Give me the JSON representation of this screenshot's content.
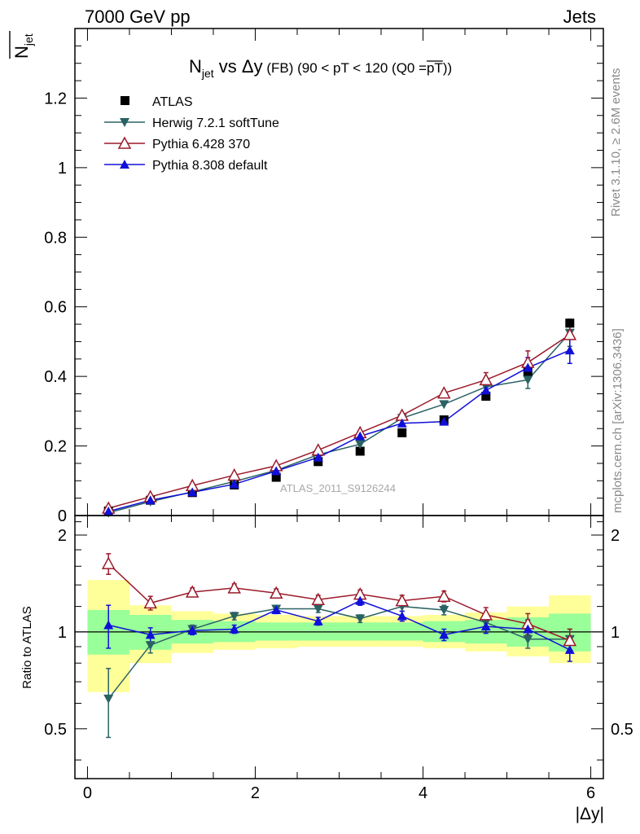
{
  "header": {
    "left": "7000 GeV pp",
    "right": "Jets"
  },
  "side_labels": {
    "top": "Rivet 3.1.10, ≥ 2.6M events",
    "bottom": "mcplots.cern.ch [arXiv:1306.3436]"
  },
  "watermark": "ATLAS_2011_S9126244",
  "chart_data": {
    "type": "scatter",
    "title_parts": {
      "n": "N",
      "sub": "jet",
      "mid": " vs Δy",
      "paren": " (FB) (90 < pT < 120 (Q0 =",
      "over": "pT",
      "close": "))"
    },
    "ylabel_main": {
      "n": "N",
      "sub": "jet"
    },
    "ylabel_ratio": "Ratio to ATLAS",
    "xlabel": "|Δy|",
    "xlim": [
      -0.15,
      6.15
    ],
    "ylim_main": [
      0,
      1.4
    ],
    "ylim_ratio": [
      0.35,
      2.3
    ],
    "log_ratio": true,
    "x_ticks": [
      0,
      2,
      4,
      6
    ],
    "x_tick_labels": [
      "0",
      "2",
      "4",
      "6"
    ],
    "y_ticks_main": [
      0,
      0.2,
      0.4,
      0.6,
      0.8,
      1,
      1.2
    ],
    "y_tick_labels_main": [
      "0",
      "0.2",
      "0.4",
      "0.6",
      "0.8",
      "1",
      "1.2"
    ],
    "y_ticks_ratio": [
      0.5,
      1,
      2
    ],
    "y_tick_labels_ratio": [
      "0.5",
      "1",
      "2"
    ],
    "x": [
      0.25,
      0.75,
      1.25,
      1.75,
      2.25,
      2.75,
      3.25,
      3.75,
      4.25,
      4.75,
      5.25,
      5.75
    ],
    "bin_edges": [
      0,
      0.5,
      1,
      1.5,
      2,
      2.5,
      3,
      3.5,
      4,
      4.5,
      5,
      5.5,
      6
    ],
    "data": {
      "name": "ATLAS",
      "values": [
        0.013,
        0.044,
        0.066,
        0.088,
        0.11,
        0.155,
        0.185,
        0.238,
        0.275,
        0.343,
        0.412,
        0.553
      ]
    },
    "series": [
      {
        "name": "Herwig 7.2.1 softTune",
        "color": "#2a6263",
        "marker": "tri-down",
        "values": [
          0.008,
          0.04,
          0.068,
          0.098,
          0.13,
          0.175,
          0.205,
          0.28,
          0.32,
          0.37,
          0.39,
          0.525
        ],
        "ratio": [
          0.62,
          0.91,
          1.02,
          1.12,
          1.18,
          1.18,
          1.1,
          1.2,
          1.17,
          1.07,
          0.95,
          0.95
        ],
        "ratio_err": [
          0.15,
          0.05,
          0.03,
          0.03,
          0.03,
          0.03,
          0.03,
          0.04,
          0.04,
          0.04,
          0.06,
          0.07
        ]
      },
      {
        "name": "Pythia 6.428 370",
        "color": "#9b1a2a",
        "marker": "tri-up-open",
        "values": [
          0.021,
          0.054,
          0.086,
          0.116,
          0.143,
          0.188,
          0.238,
          0.288,
          0.352,
          0.39,
          0.44,
          0.52
        ],
        "ratio": [
          1.63,
          1.23,
          1.33,
          1.37,
          1.32,
          1.26,
          1.31,
          1.25,
          1.29,
          1.13,
          1.06,
          0.94
        ],
        "ratio_err": [
          0.12,
          0.06,
          0.04,
          0.04,
          0.04,
          0.04,
          0.04,
          0.05,
          0.05,
          0.06,
          0.08,
          0.08
        ]
      },
      {
        "name": "Pythia 8.308 default",
        "color": "#1010d8",
        "marker": "tri-up",
        "values": [
          0.012,
          0.044,
          0.067,
          0.09,
          0.128,
          0.167,
          0.228,
          0.265,
          0.27,
          0.36,
          0.425,
          0.475
        ],
        "ratio": [
          1.05,
          0.98,
          1.01,
          1.02,
          1.17,
          1.08,
          1.25,
          1.12,
          0.98,
          1.04,
          1.02,
          0.88
        ],
        "ratio_err": [
          0.16,
          0.05,
          0.03,
          0.03,
          0.03,
          0.03,
          0.04,
          0.04,
          0.04,
          0.05,
          0.07,
          0.07
        ]
      }
    ],
    "band_inner": [
      [
        0.85,
        1.17
      ],
      [
        0.88,
        1.13
      ],
      [
        0.92,
        1.09
      ],
      [
        0.93,
        1.08
      ],
      [
        0.94,
        1.07
      ],
      [
        0.94,
        1.07
      ],
      [
        0.94,
        1.07
      ],
      [
        0.94,
        1.07
      ],
      [
        0.93,
        1.08
      ],
      [
        0.92,
        1.09
      ],
      [
        0.9,
        1.11
      ],
      [
        0.87,
        1.14
      ]
    ],
    "band_outer": [
      [
        0.65,
        1.45
      ],
      [
        0.8,
        1.21
      ],
      [
        0.86,
        1.16
      ],
      [
        0.88,
        1.14
      ],
      [
        0.89,
        1.13
      ],
      [
        0.9,
        1.12
      ],
      [
        0.9,
        1.12
      ],
      [
        0.9,
        1.12
      ],
      [
        0.89,
        1.13
      ],
      [
        0.87,
        1.15
      ],
      [
        0.84,
        1.2
      ],
      [
        0.8,
        1.3
      ]
    ],
    "colors": {
      "inner": "#99ff99",
      "outer": "#ffff99"
    }
  }
}
